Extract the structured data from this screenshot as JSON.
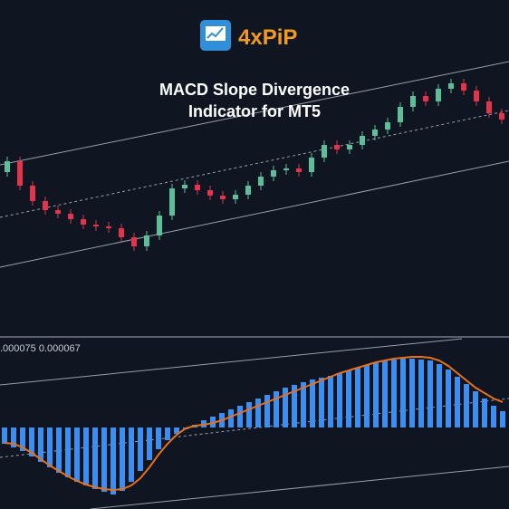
{
  "header": {
    "logo": "4xPiP",
    "title_lines": [
      "MACD Slope Divergence",
      "Indicator for MT5"
    ]
  },
  "chart_data": [
    {
      "type": "candlestick",
      "ylim": [
        0,
        370
      ],
      "up_color": "#5cbf9a",
      "down_color": "#e2344b",
      "open": [
        180,
        192,
        165,
        148,
        138,
        134,
        128,
        122,
        120,
        118,
        108,
        98,
        110,
        132,
        162,
        166,
        160,
        154,
        150,
        155,
        165,
        175,
        182,
        184,
        180,
        196,
        210,
        205,
        210,
        220,
        227,
        235,
        252,
        264,
        258,
        272,
        278,
        270,
        258,
        245
      ],
      "high": [
        197,
        197,
        170,
        153,
        143,
        139,
        133,
        127,
        125,
        123,
        113,
        115,
        137,
        167,
        171,
        171,
        165,
        159,
        160,
        170,
        180,
        187,
        189,
        189,
        201,
        215,
        215,
        215,
        225,
        232,
        240,
        257,
        269,
        269,
        277,
        283,
        283,
        275,
        263,
        250
      ],
      "low": [
        175,
        160,
        143,
        133,
        129,
        123,
        117,
        115,
        113,
        103,
        93,
        93,
        105,
        127,
        157,
        155,
        149,
        145,
        145,
        150,
        160,
        170,
        177,
        175,
        175,
        191,
        200,
        200,
        205,
        215,
        222,
        230,
        247,
        253,
        253,
        267,
        265,
        253,
        240,
        233
      ],
      "close": [
        192,
        165,
        148,
        138,
        134,
        128,
        122,
        120,
        118,
        108,
        98,
        110,
        132,
        162,
        166,
        160,
        154,
        150,
        155,
        165,
        175,
        182,
        184,
        180,
        196,
        210,
        205,
        210,
        220,
        227,
        235,
        252,
        264,
        258,
        272,
        278,
        270,
        258,
        245,
        238
      ]
    },
    {
      "type": "macd",
      "label": ".000075 0.000067",
      "ylim": [
        -90,
        94
      ],
      "histogram": {
        "color": "#3d8ef0",
        "values": [
          -18,
          -22,
          -26,
          -32,
          -38,
          -44,
          -50,
          -55,
          -60,
          -64,
          -68,
          -71,
          -74,
          -70,
          -60,
          -48,
          -36,
          -24,
          -14,
          -7,
          -2,
          3,
          8,
          12,
          16,
          20,
          24,
          28,
          32,
          36,
          40,
          44,
          47,
          50,
          53,
          55,
          57,
          60,
          63,
          66,
          69,
          72,
          74,
          75,
          76,
          76,
          75,
          74,
          70,
          64,
          56,
          48,
          40,
          32,
          24,
          18
        ]
      },
      "signal": {
        "color": "#e8701a",
        "values": [
          -17,
          -18,
          -22,
          -28,
          -35,
          -42,
          -48,
          -54,
          -59,
          -63,
          -66,
          -68,
          -69,
          -68,
          -64,
          -56,
          -44,
          -30,
          -18,
          -8,
          -1,
          2,
          3,
          5,
          8,
          12,
          16,
          20,
          24,
          28,
          32,
          36,
          40,
          44,
          48,
          52,
          56,
          60,
          63,
          66,
          69,
          72,
          74,
          76,
          77,
          78,
          78,
          77,
          74,
          68,
          60,
          52,
          44,
          38,
          32,
          28
        ]
      }
    }
  ]
}
